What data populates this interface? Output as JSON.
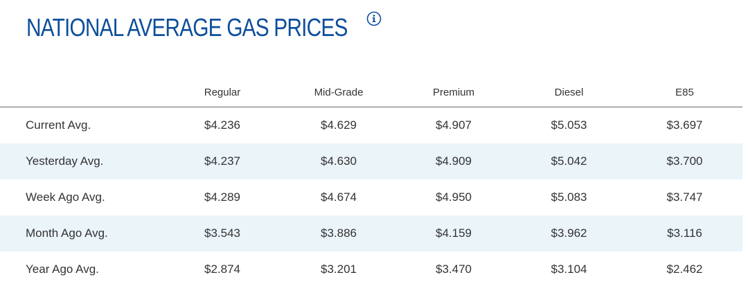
{
  "header": {
    "title": "NATIONAL AVERAGE GAS PRICES",
    "info_icon": "info-circle-icon"
  },
  "colors": {
    "title": "#0d4e9c",
    "row_alt_background": "#ebf4f9",
    "text": "#333333",
    "header_rule": "#666666"
  },
  "table": {
    "columns": [
      "",
      "Regular",
      "Mid-Grade",
      "Premium",
      "Diesel",
      "E85"
    ],
    "rows": [
      {
        "label": "Current Avg.",
        "values": [
          "$4.236",
          "$4.629",
          "$4.907",
          "$5.053",
          "$3.697"
        ]
      },
      {
        "label": "Yesterday Avg.",
        "values": [
          "$4.237",
          "$4.630",
          "$4.909",
          "$5.042",
          "$3.700"
        ]
      },
      {
        "label": "Week Ago Avg.",
        "values": [
          "$4.289",
          "$4.674",
          "$4.950",
          "$5.083",
          "$3.747"
        ]
      },
      {
        "label": "Month Ago Avg.",
        "values": [
          "$3.543",
          "$3.886",
          "$4.159",
          "$3.962",
          "$3.116"
        ]
      },
      {
        "label": "Year Ago Avg.",
        "values": [
          "$2.874",
          "$3.201",
          "$3.470",
          "$3.104",
          "$2.462"
        ]
      }
    ]
  }
}
